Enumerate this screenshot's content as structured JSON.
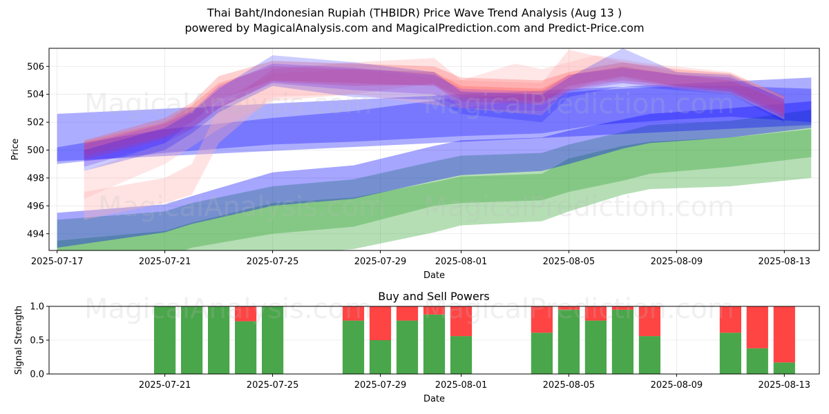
{
  "header": {
    "title_line1": "Thai Baht/Indonesian Rupiah (THBIDR) Price Wave Trend Analysis (Aug 13 )",
    "title_line2": "powered by MagicalAnalysis.com and MagicalPrediction.com and Predict-Price.com"
  },
  "watermarks": [
    "MagicalAnalysis.com",
    "MagicalPrediction.com"
  ],
  "chart_data": [
    {
      "type": "area",
      "xlabel": "Date",
      "ylabel": "Price",
      "x_ticks": [
        "2025-07-17",
        "2025-07-21",
        "2025-07-25",
        "2025-07-29",
        "2025-08-01",
        "2025-08-05",
        "2025-08-09",
        "2025-08-13"
      ],
      "y_ticks": [
        494,
        496,
        498,
        500,
        502,
        504,
        506
      ],
      "xlim": [
        "2025-07-16.7",
        "2025-08-14.3"
      ],
      "ylim": [
        492.8,
        507.3
      ],
      "grid": true,
      "colors": {
        "green": "#2ca02c",
        "blue": "#0000ff",
        "red": "#ff4444",
        "purple": "#8a2be2",
        "pink": "#ffb0b0"
      },
      "bands": [
        {
          "color": "green",
          "opacity": 0.35,
          "x": [
            "2025-07-17",
            "2025-07-21",
            "2025-07-22",
            "2025-07-25",
            "2025-07-28",
            "2025-07-31",
            "2025-08-01",
            "2025-08-04",
            "2025-08-05",
            "2025-08-07",
            "2025-08-08",
            "2025-08-11",
            "2025-08-14"
          ],
          "lower": [
            491.5,
            492.3,
            493.0,
            494.0,
            494.5,
            496.0,
            496.2,
            496.4,
            497.0,
            497.8,
            498.3,
            498.8,
            499.5
          ],
          "upper": [
            495.0,
            495.6,
            496.2,
            497.4,
            497.9,
            499.2,
            499.6,
            499.8,
            500.4,
            501.3,
            501.8,
            502.1,
            502.9
          ]
        },
        {
          "color": "green",
          "opacity": 0.35,
          "x": [
            "2025-07-17",
            "2025-07-21",
            "2025-07-22",
            "2025-07-25",
            "2025-07-28",
            "2025-07-31",
            "2025-08-01",
            "2025-08-04",
            "2025-08-05",
            "2025-08-07",
            "2025-08-08",
            "2025-08-11",
            "2025-08-14"
          ],
          "lower": [
            489.6,
            490.6,
            491.2,
            492.4,
            492.9,
            494.1,
            494.6,
            494.9,
            495.6,
            496.8,
            497.2,
            497.4,
            498.0
          ],
          "upper": [
            493.5,
            494.2,
            494.8,
            496.2,
            496.6,
            497.7,
            498.1,
            498.3,
            499.4,
            500.3,
            500.6,
            500.9,
            501.5
          ]
        },
        {
          "color": "blue",
          "opacity": 0.35,
          "x": [
            "2025-07-17",
            "2025-07-21",
            "2025-07-22",
            "2025-07-25",
            "2025-07-28",
            "2025-07-31",
            "2025-08-01",
            "2025-08-04",
            "2025-08-05",
            "2025-08-07",
            "2025-08-08",
            "2025-08-11",
            "2025-08-14"
          ],
          "lower": [
            493.0,
            494.1,
            494.7,
            496.0,
            496.5,
            497.8,
            498.2,
            498.5,
            499.0,
            500.1,
            500.5,
            500.9,
            501.6
          ],
          "upper": [
            495.5,
            496.1,
            496.7,
            498.4,
            498.9,
            500.3,
            500.7,
            500.9,
            501.4,
            502.2,
            502.6,
            503.0,
            503.5
          ]
        },
        {
          "color": "blue",
          "opacity": 0.32,
          "x": [
            "2025-07-17",
            "2025-08-14"
          ],
          "lower": [
            499.2,
            501.8
          ],
          "upper": [
            502.6,
            505.2
          ]
        },
        {
          "color": "blue",
          "opacity": 0.3,
          "x": [
            "2025-07-17",
            "2025-07-21",
            "2025-07-25",
            "2025-07-28",
            "2025-08-01",
            "2025-08-04",
            "2025-08-06",
            "2025-08-09",
            "2025-08-11",
            "2025-08-14"
          ],
          "lower": [
            499.0,
            499.8,
            500.4,
            500.6,
            501.0,
            501.2,
            501.8,
            502.2,
            502.4,
            502.0
          ],
          "upper": [
            500.2,
            501.5,
            502.3,
            502.8,
            503.8,
            504.0,
            504.3,
            504.6,
            504.6,
            504.4
          ]
        },
        {
          "color": "pink",
          "opacity": 0.35,
          "x": [
            "2025-07-18",
            "2025-07-21",
            "2025-07-22",
            "2025-07-23",
            "2025-07-25",
            "2025-07-28",
            "2025-07-31",
            "2025-08-01",
            "2025-08-04",
            "2025-08-05",
            "2025-08-07",
            "2025-08-09",
            "2025-08-11",
            "2025-08-13"
          ],
          "lower": [
            495.0,
            496.2,
            496.8,
            500.5,
            503.8,
            504.0,
            504.8,
            503.0,
            502.5,
            504.4,
            505.2,
            504.4,
            504.0,
            502.2
          ],
          "upper": [
            497.0,
            498.0,
            499.0,
            503.0,
            505.8,
            506.3,
            506.6,
            505.0,
            504.8,
            507.2,
            506.3,
            505.6,
            505.2,
            503.6
          ]
        },
        {
          "color": "pink",
          "opacity": 0.3,
          "x": [
            "2025-07-18",
            "2025-07-21",
            "2025-07-23",
            "2025-07-25",
            "2025-07-28",
            "2025-08-01",
            "2025-08-03",
            "2025-08-04",
            "2025-08-06",
            "2025-08-08",
            "2025-08-11",
            "2025-08-13"
          ],
          "lower": [
            496.5,
            499.0,
            501.5,
            503.5,
            504.0,
            503.0,
            503.5,
            503.2,
            505.0,
            504.6,
            504.2,
            502.2
          ],
          "upper": [
            498.5,
            500.5,
            503.5,
            505.5,
            505.8,
            505.0,
            506.2,
            505.8,
            506.8,
            506.2,
            505.6,
            503.8
          ]
        },
        {
          "color": "red",
          "opacity": 0.25,
          "x": [
            "2025-07-18",
            "2025-07-21",
            "2025-07-22",
            "2025-07-23",
            "2025-07-25",
            "2025-07-28",
            "2025-07-31",
            "2025-08-01",
            "2025-08-04",
            "2025-08-05",
            "2025-08-07",
            "2025-08-09",
            "2025-08-11",
            "2025-08-13"
          ],
          "lower": [
            499.3,
            500.8,
            501.6,
            503.0,
            504.9,
            504.6,
            504.7,
            503.8,
            503.5,
            504.3,
            505.0,
            504.6,
            504.4,
            502.6
          ],
          "upper": [
            500.7,
            502.3,
            503.4,
            505.3,
            506.4,
            506.2,
            506.0,
            505.2,
            505.0,
            505.6,
            506.3,
            505.8,
            505.5,
            503.9
          ]
        },
        {
          "color": "red",
          "opacity": 0.25,
          "x": [
            "2025-07-18",
            "2025-07-21",
            "2025-07-22",
            "2025-07-23",
            "2025-07-25",
            "2025-07-28",
            "2025-07-31",
            "2025-08-01",
            "2025-08-04",
            "2025-08-05",
            "2025-08-07",
            "2025-08-09",
            "2025-08-11",
            "2025-08-13"
          ],
          "lower": [
            499.6,
            501.0,
            502.0,
            503.6,
            505.0,
            504.8,
            504.6,
            503.5,
            503.3,
            504.6,
            505.3,
            504.6,
            504.2,
            502.4
          ],
          "upper": [
            500.6,
            502.0,
            503.2,
            504.8,
            506.0,
            505.8,
            505.6,
            504.6,
            504.4,
            505.4,
            506.0,
            505.4,
            505.0,
            503.4
          ]
        },
        {
          "color": "purple",
          "opacity": 0.25,
          "x": [
            "2025-07-18",
            "2025-07-21",
            "2025-07-22",
            "2025-07-23",
            "2025-07-25",
            "2025-07-28",
            "2025-07-31",
            "2025-08-01",
            "2025-08-04",
            "2025-08-05",
            "2025-08-07",
            "2025-08-09",
            "2025-08-11",
            "2025-08-13"
          ],
          "lower": [
            498.8,
            500.5,
            501.5,
            503.0,
            504.8,
            504.3,
            504.0,
            503.0,
            502.8,
            504.2,
            504.8,
            504.4,
            504.2,
            502.3
          ],
          "upper": [
            500.4,
            501.9,
            502.8,
            504.6,
            506.2,
            505.9,
            505.4,
            504.4,
            504.2,
            505.4,
            505.9,
            505.4,
            505.2,
            503.7
          ]
        },
        {
          "color": "blue",
          "opacity": 0.2,
          "x": [
            "2025-07-18",
            "2025-07-21",
            "2025-07-22",
            "2025-07-23",
            "2025-07-25",
            "2025-07-28",
            "2025-07-31",
            "2025-08-01",
            "2025-08-04",
            "2025-08-05",
            "2025-08-07",
            "2025-08-09",
            "2025-08-11",
            "2025-08-13"
          ],
          "lower": [
            498.5,
            500.0,
            501.2,
            502.7,
            504.6,
            503.8,
            503.6,
            502.6,
            502.0,
            503.8,
            504.6,
            504.3,
            504.0,
            502.0
          ],
          "upper": [
            500.0,
            501.6,
            502.7,
            504.4,
            506.8,
            506.3,
            505.6,
            504.2,
            504.0,
            505.2,
            507.3,
            505.6,
            505.4,
            503.6
          ]
        }
      ]
    },
    {
      "type": "bar",
      "title": "Buy and Sell Powers",
      "xlabel": "Date",
      "ylabel": "Signal Strength",
      "x_ticks": [
        "2025-07-21",
        "2025-07-25",
        "2025-07-29",
        "2025-08-01",
        "2025-08-05",
        "2025-08-09",
        "2025-08-13"
      ],
      "y_ticks": [
        "0.0",
        "0.5",
        "1.0"
      ],
      "xlim": [
        "2025-07-16.7",
        "2025-08-14.3"
      ],
      "ylim": [
        0,
        1
      ],
      "grid": true,
      "colors": {
        "buy": "#4aa64a",
        "sell": "#ff4444"
      },
      "series": [
        {
          "name": "buy",
          "key": "buy"
        },
        {
          "name": "sell",
          "key": "sell"
        }
      ],
      "categories": [
        "2025-07-21",
        "2025-07-22",
        "2025-07-23",
        "2025-07-24",
        "2025-07-25",
        "2025-07-28",
        "2025-07-29",
        "2025-07-30",
        "2025-07-31",
        "2025-08-01",
        "2025-08-04",
        "2025-08-05",
        "2025-08-06",
        "2025-08-07",
        "2025-08-08",
        "2025-08-11",
        "2025-08-12",
        "2025-08-13"
      ],
      "buy": [
        1.0,
        1.0,
        1.0,
        0.78,
        1.0,
        0.79,
        0.5,
        0.79,
        0.88,
        0.56,
        0.61,
        0.95,
        0.79,
        0.95,
        0.56,
        0.61,
        0.38,
        0.17
      ],
      "sell": [
        0.0,
        0.0,
        0.0,
        0.22,
        0.0,
        0.21,
        0.5,
        0.21,
        0.12,
        0.44,
        0.39,
        0.05,
        0.21,
        0.05,
        0.44,
        0.39,
        0.62,
        0.83
      ]
    }
  ]
}
